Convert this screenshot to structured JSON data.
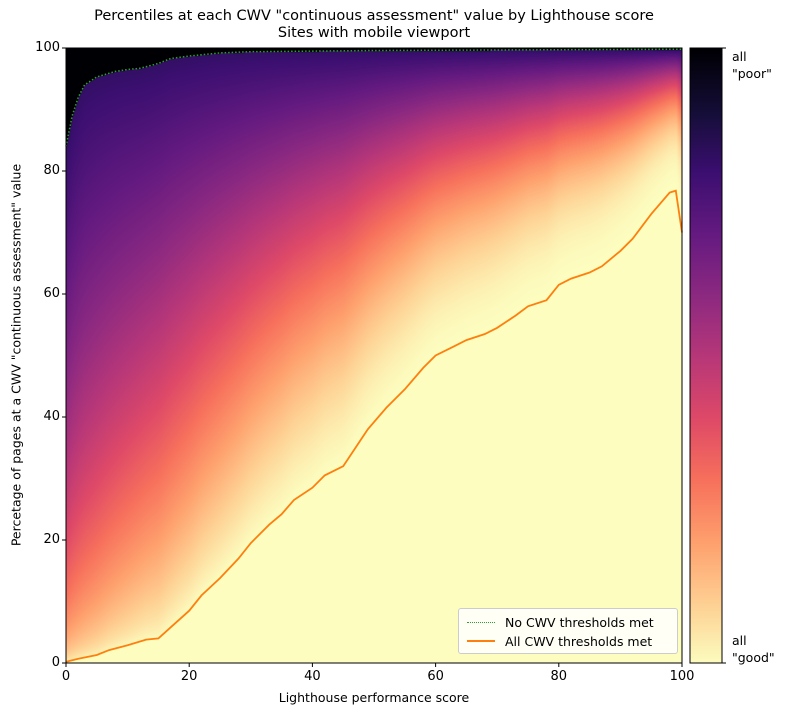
{
  "chart_data": {
    "type": "heatmap",
    "title": "Percentiles at each CWV \"continuous assessment\" value by Lighthouse score",
    "subtitle": "Sites with mobile viewport",
    "xlabel": "Lighthouse performance score",
    "ylabel": "Percetage of pages at a CWV \"continuous assessment\" value",
    "xlim": [
      0,
      100
    ],
    "ylim": [
      0,
      100
    ],
    "xticks": [
      "0",
      "20",
      "40",
      "60",
      "80",
      "100"
    ],
    "yticks": [
      "0",
      "20",
      "40",
      "60",
      "80",
      "100"
    ],
    "grid": false,
    "colormap": "magma",
    "colorbar": {
      "top_label": "all\n\"poor\"",
      "bottom_label": "all\n\"good\""
    },
    "legend_position": "bottom-right",
    "series": [
      {
        "name": "No CWV thresholds met",
        "style": "dotted",
        "color": "#2ca02c",
        "x": [
          0,
          1,
          2,
          3,
          5,
          8,
          10,
          12,
          15,
          17,
          20,
          25,
          30,
          50,
          100
        ],
        "y": [
          84,
          89,
          92,
          94,
          95.3,
          96.2,
          96.5,
          96.7,
          97.5,
          98.3,
          98.7,
          99.2,
          99.4,
          99.6,
          99.8
        ]
      },
      {
        "name": "All CWV thresholds met",
        "style": "solid",
        "color": "#ff7f0e",
        "x": [
          0,
          2,
          5,
          7,
          10,
          13,
          15,
          17,
          20,
          22,
          25,
          28,
          30,
          33,
          35,
          37,
          40,
          42,
          45,
          47,
          49,
          52,
          55,
          58,
          60,
          63,
          65,
          68,
          70,
          73,
          75,
          78,
          80,
          82,
          85,
          87,
          90,
          92,
          95,
          98,
          99,
          100
        ],
        "y": [
          0.2,
          0.7,
          1.3,
          2.1,
          2.9,
          3.8,
          4.0,
          5.8,
          8.5,
          11.0,
          13.8,
          17.0,
          19.5,
          22.5,
          24.2,
          26.5,
          28.5,
          30.5,
          32.0,
          35.0,
          38.0,
          41.5,
          44.5,
          48.0,
          50.0,
          51.5,
          52.5,
          53.5,
          54.5,
          56.5,
          58.0,
          59.0,
          61.5,
          62.5,
          63.5,
          64.5,
          67.0,
          69.0,
          73.0,
          76.5,
          76.8,
          70.0
        ]
      }
    ]
  }
}
